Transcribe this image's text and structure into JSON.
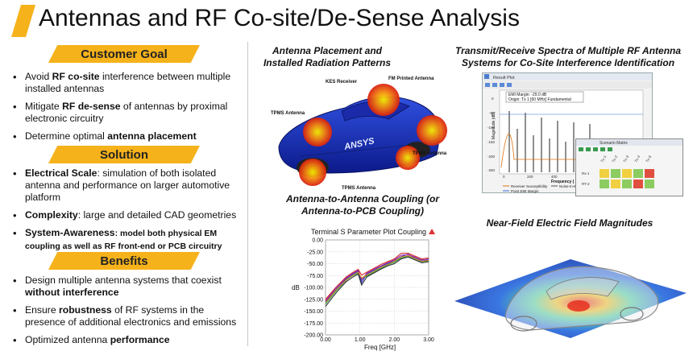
{
  "title": "Antennas and RF Co-site/De-Sense Analysis",
  "left": {
    "goal_heading": "Customer Goal",
    "goal_items": [
      {
        "pre": "Avoid ",
        "bold": "RF co-site",
        "post": " interference between multiple installed antennas"
      },
      {
        "pre": "Mitigate ",
        "bold": "RF de-sense",
        "post": " of antennas by proximal electronic circuitry"
      },
      {
        "pre": "Determine optimal ",
        "bold": "antenna placement",
        "post": ""
      }
    ],
    "solution_heading": "Solution",
    "solution_items": [
      {
        "bold": "Electrical Scale",
        "post": ": simulation of both isolated antenna and performance on larger automotive platform"
      },
      {
        "bold": "Complexity",
        "post": ":  large and detailed CAD geometries"
      },
      {
        "bold": "System-Awareness",
        "post": ": model both physical EM coupling as well as RF front-end or PCB circuitry"
      }
    ],
    "benefits_heading": "Benefits",
    "benefits_items": [
      {
        "pre": "Design multiple antenna systems that coexist ",
        "bold": "without interference",
        "post": ""
      },
      {
        "pre": "Ensure ",
        "bold": "robustness",
        "post": " of RF systems in the presence of additional electronics and emissions"
      },
      {
        "pre": "Optimized antenna ",
        "bold": "performance",
        "post": ""
      }
    ]
  },
  "captions": {
    "placement": "Antenna Placement and Installed Radiation Patterns",
    "spectra": "Transmit/Receive Spectra of Multiple RF Antenna Systems for Co-Site Interference Identification",
    "coupling": "Antenna-to-Antenna Coupling (or Antenna-to-PCB Coupling)",
    "nearfield": "Near-Field Electric Field Magnitudes"
  },
  "car_labels": {
    "kes": "KES Receiver",
    "fm": "FM Printed Antenna",
    "tpms_left": "TPMS Antenna",
    "tpms_right": "TPMS Antenna",
    "tpms_bottom": "TPMS Antenna",
    "brand": "ANSYS"
  },
  "spectra_window": {
    "title": "Result Plot",
    "margin_line1": "EMI Margin: -29.0 dB",
    "margin_line2": "Origin: Tx 1 [60 MHz] Fundamental",
    "ylabel": "Magnitude (dB)",
    "xlabel": "Frequency (",
    "yticks": [
      "0",
      "-50",
      "-100",
      "-150",
      "-200",
      "-250"
    ],
    "xticks": [
      "0",
      "200",
      "400"
    ],
    "legend": [
      "Receiver Susceptibility",
      "Noise-In-Ban",
      "Point EMI Margin"
    ],
    "matrix_title": "Scenario Matrix",
    "matrix_cols": [
      "Tx-1",
      "Tx-2",
      "Tx-3",
      "Tx-4",
      "Tx-5"
    ],
    "matrix_rows": [
      "Rx-1",
      "RT-2"
    ]
  },
  "chart_data": {
    "type": "line",
    "title": "Terminal S Parameter Plot Coupling",
    "xlabel": "Freq [GHz]",
    "ylabel": "dB",
    "xlim": [
      0.0,
      3.0
    ],
    "ylim": [
      -200.0,
      0.0
    ],
    "xticks": [
      "0.00",
      "1.00",
      "2.00",
      "3.00"
    ],
    "yticks": [
      "-200.00",
      "-175.00",
      "-150.00",
      "-125.00",
      "-100.00",
      "-75.00",
      "-50.00",
      "-25.00",
      "0.00"
    ],
    "x": [
      0.0,
      0.3,
      0.6,
      0.8,
      0.95,
      1.05,
      1.2,
      1.4,
      1.6,
      1.8,
      2.0,
      2.2,
      2.4,
      2.6,
      2.8,
      3.0
    ],
    "series": [
      {
        "name": "s1",
        "color": "#d02020",
        "values": [
          -125,
          -100,
          -78,
          -68,
          -62,
          -74,
          -68,
          -60,
          -52,
          -46,
          -40,
          -28,
          -28,
          -34,
          -40,
          -38
        ]
      },
      {
        "name": "s2",
        "color": "#2030c0",
        "values": [
          -130,
          -105,
          -82,
          -72,
          -66,
          -90,
          -72,
          -64,
          -56,
          -50,
          -44,
          -35,
          -30,
          -38,
          -44,
          -42
        ]
      },
      {
        "name": "s3",
        "color": "#20a040",
        "values": [
          -135,
          -108,
          -85,
          -75,
          -70,
          -82,
          -76,
          -68,
          -60,
          -53,
          -47,
          -38,
          -34,
          -40,
          -46,
          -44
        ]
      },
      {
        "name": "s4",
        "color": "#a020a0",
        "values": [
          -128,
          -102,
          -80,
          -70,
          -64,
          -85,
          -70,
          -62,
          -55,
          -48,
          -42,
          -32,
          -31,
          -36,
          -42,
          -40
        ]
      },
      {
        "name": "s5",
        "color": "#202020",
        "values": [
          -140,
          -112,
          -88,
          -78,
          -72,
          -95,
          -78,
          -70,
          -62,
          -55,
          -50,
          -40,
          -36,
          -42,
          -48,
          -46
        ]
      },
      {
        "name": "s6",
        "color": "#e08020",
        "values": [
          -132,
          -106,
          -84,
          -74,
          -68,
          -80,
          -74,
          -66,
          -58,
          -52,
          -45,
          -36,
          -33,
          -39,
          -45,
          -43
        ]
      }
    ]
  }
}
